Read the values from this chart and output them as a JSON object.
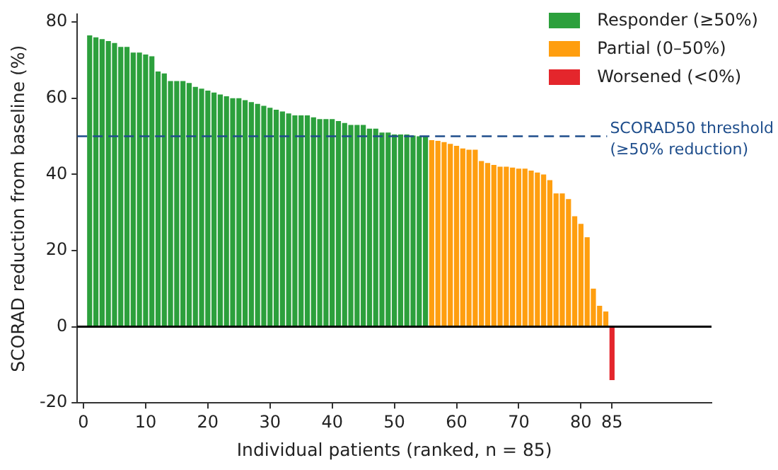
{
  "chart_data": {
    "type": "bar",
    "xlabel": "Individual patients (ranked, n = 85)",
    "ylabel": "SCORAD reduction from baseline (%)",
    "xlim": [
      -1,
      101
    ],
    "xticks": [
      0,
      10,
      20,
      30,
      40,
      50,
      60,
      70,
      80,
      85
    ],
    "ylim": [
      -20,
      82
    ],
    "yticks": [
      -20,
      0,
      20,
      40,
      60,
      80
    ],
    "grid": false,
    "legend": "top right",
    "series": [
      {
        "name": "Responder (≥50%)",
        "color": "#2ca03c",
        "x": [
          1,
          2,
          3,
          4,
          5,
          6,
          7,
          8,
          9,
          10,
          11,
          12,
          13,
          14,
          15,
          16,
          17,
          18,
          19,
          20,
          21,
          22,
          23,
          24,
          25,
          26,
          27,
          28,
          29,
          30,
          31,
          32,
          33,
          34,
          35,
          36,
          37,
          38,
          39,
          40,
          41,
          42,
          43,
          44,
          45,
          46,
          47,
          48,
          49,
          50,
          51,
          52,
          53,
          54,
          55
        ],
        "values": [
          76.5,
          76,
          75.5,
          75,
          74.5,
          73.5,
          73.5,
          72,
          72,
          71.5,
          71,
          67,
          66.5,
          64.5,
          64.5,
          64.5,
          64,
          63,
          62.5,
          62,
          61.5,
          61,
          60.5,
          60,
          60,
          59.5,
          59,
          58.5,
          58,
          57.5,
          57,
          56.5,
          56,
          55.5,
          55.5,
          55.5,
          55,
          54.5,
          54.5,
          54.5,
          54,
          53.5,
          53,
          53,
          53,
          52,
          52,
          51,
          51,
          50.5,
          50.5,
          50.5,
          50.2,
          50,
          50
        ]
      },
      {
        "name": "Partial (0–50%)",
        "color": "#ff9e0f",
        "x": [
          56,
          57,
          58,
          59,
          60,
          61,
          62,
          63,
          64,
          65,
          66,
          67,
          68,
          69,
          70,
          71,
          72,
          73,
          74,
          75,
          76,
          77,
          78,
          79,
          80,
          81,
          82,
          83,
          84
        ],
        "values": [
          49,
          48.8,
          48.5,
          48,
          47.5,
          46.8,
          46.5,
          46.5,
          43.5,
          43,
          42.5,
          42,
          42,
          41.8,
          41.5,
          41.5,
          41,
          40.5,
          40,
          38.5,
          35,
          35,
          33.5,
          29,
          27,
          23.5,
          10,
          5.5,
          4
        ]
      },
      {
        "name": "Worsened (<0%)",
        "color": "#e4262c",
        "x": [
          85
        ],
        "values": [
          -14
        ]
      }
    ],
    "ref_lines": [
      {
        "axis": "y",
        "value": 50,
        "label": "SCORAD50 threshold\n(≥50% reduction)",
        "color": "#1f4e8c",
        "line_style": "dashed"
      },
      {
        "axis": "y",
        "value": 0,
        "color": "#000000",
        "line_style": "solid"
      }
    ]
  }
}
